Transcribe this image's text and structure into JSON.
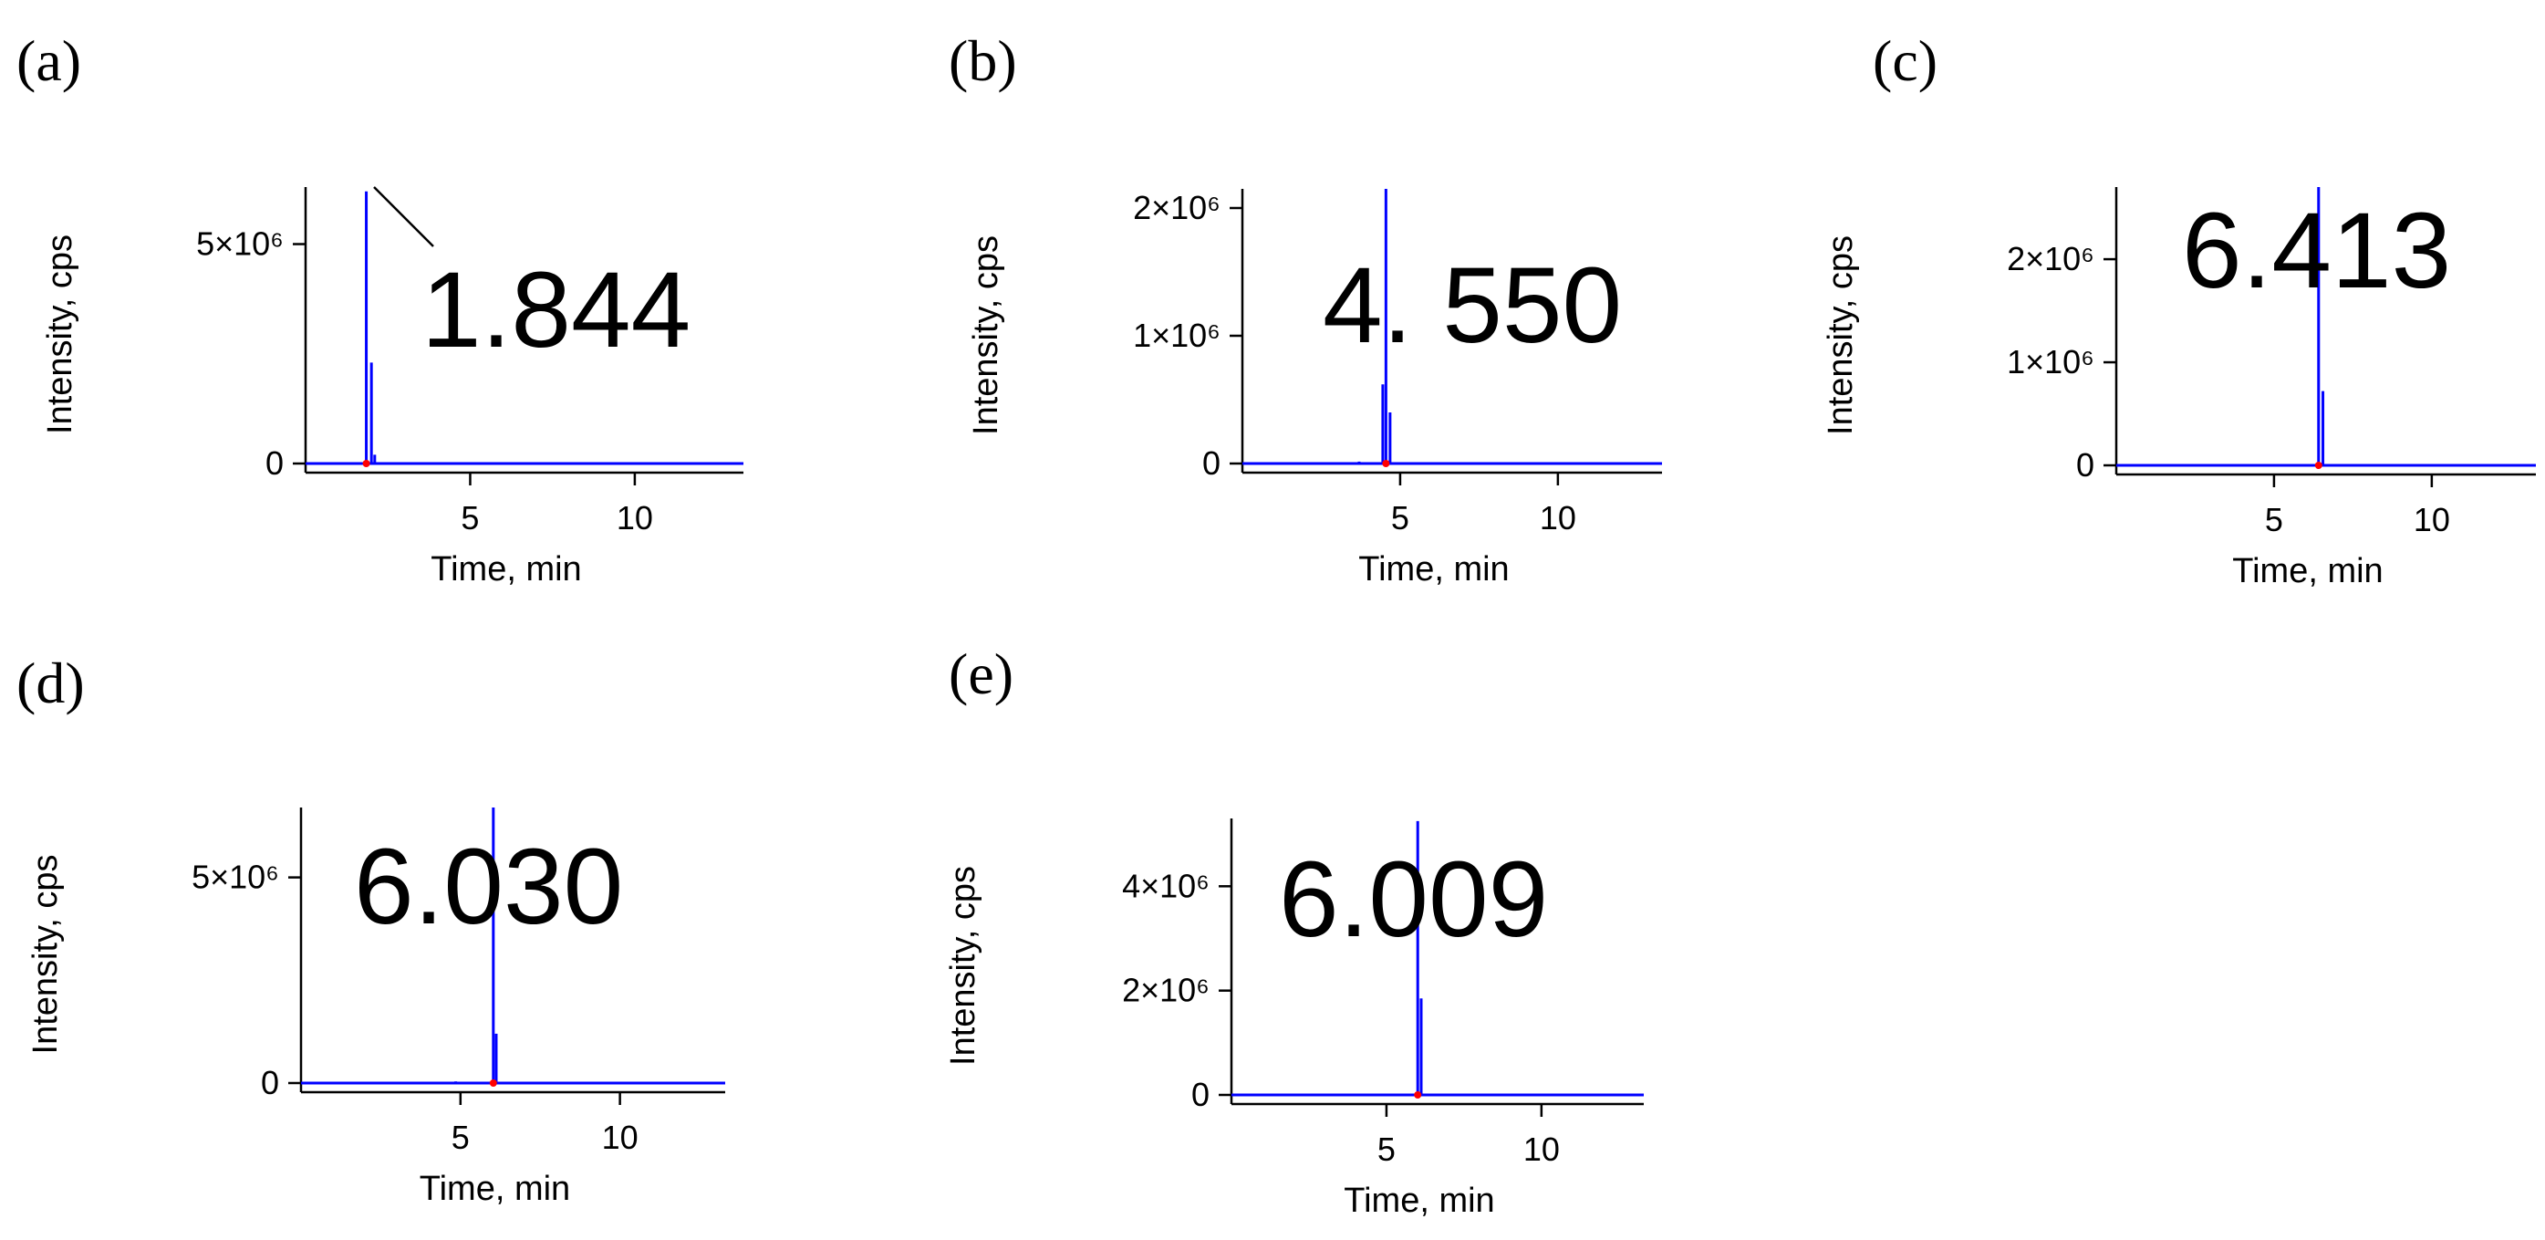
{
  "chart_data": [
    {
      "type": "line",
      "panel_label": "(a)",
      "xlabel": "Time, min",
      "ylabel": "Intensity, cps",
      "xlim": [
        0,
        13.3
      ],
      "ylim": [
        0,
        6300000
      ],
      "xticks": [
        {
          "v": 5,
          "label": "5"
        },
        {
          "v": 10,
          "label": "10"
        }
      ],
      "yticks": [
        {
          "v": 0,
          "label": "0"
        },
        {
          "v": 5000000,
          "label": "5×10⁶"
        }
      ],
      "retention_time_label": "1.844",
      "callout_line": true,
      "peaks": [
        {
          "x": 1.844,
          "y": 6200000
        },
        {
          "x": 2.0,
          "y": 2300000
        },
        {
          "x": 2.1,
          "y": 200000
        }
      ],
      "marker_x": 1.844
    },
    {
      "type": "line",
      "panel_label": "(b)",
      "xlabel": "Time, min",
      "ylabel": "Intensity, cps",
      "xlim": [
        0,
        13.3
      ],
      "ylim": [
        0,
        2150000
      ],
      "xticks": [
        {
          "v": 5,
          "label": "5"
        },
        {
          "v": 10,
          "label": "10"
        }
      ],
      "yticks": [
        {
          "v": 0,
          "label": "0"
        },
        {
          "v": 1000000,
          "label": "1×10⁶"
        },
        {
          "v": 2000000,
          "label": "2×10⁶"
        }
      ],
      "retention_time_label": "4. 550",
      "callout_line": false,
      "peaks": [
        {
          "x": 4.55,
          "y": 2150000
        },
        {
          "x": 4.45,
          "y": 620000
        },
        {
          "x": 4.68,
          "y": 400000
        },
        {
          "x": 3.7,
          "y": 15000
        }
      ],
      "marker_x": 4.55
    },
    {
      "type": "line",
      "panel_label": "(c)",
      "xlabel": "Time, min",
      "ylabel": "Intensity, cps",
      "xlim": [
        0,
        13.3
      ],
      "ylim": [
        0,
        2700000
      ],
      "xticks": [
        {
          "v": 5,
          "label": "5"
        },
        {
          "v": 10,
          "label": "10"
        }
      ],
      "yticks": [
        {
          "v": 0,
          "label": "0"
        },
        {
          "v": 1000000,
          "label": "1×10⁶"
        },
        {
          "v": 2000000,
          "label": "2×10⁶"
        }
      ],
      "retention_time_label": "6.413",
      "callout_line": false,
      "peaks": [
        {
          "x": 6.413,
          "y": 2700000
        },
        {
          "x": 6.55,
          "y": 720000
        }
      ],
      "marker_x": 6.413
    },
    {
      "type": "line",
      "panel_label": "(d)",
      "xlabel": "Time, min",
      "ylabel": "Intensity, cps",
      "xlim": [
        0,
        13.3
      ],
      "ylim": [
        0,
        6700000
      ],
      "xticks": [
        {
          "v": 5,
          "label": "5"
        },
        {
          "v": 10,
          "label": "10"
        }
      ],
      "yticks": [
        {
          "v": 0,
          "label": "0"
        },
        {
          "v": 5000000,
          "label": "5×10⁶"
        }
      ],
      "retention_time_label": "6.030",
      "callout_line": false,
      "peaks": [
        {
          "x": 6.03,
          "y": 6700000
        },
        {
          "x": 6.12,
          "y": 1200000
        },
        {
          "x": 4.85,
          "y": 40000
        }
      ],
      "marker_x": 6.03
    },
    {
      "type": "line",
      "panel_label": "(e)",
      "xlabel": "Time, min",
      "ylabel": "Intensity, cps",
      "xlim": [
        0,
        13.3
      ],
      "ylim": [
        0,
        5300000
      ],
      "xticks": [
        {
          "v": 5,
          "label": "5"
        },
        {
          "v": 10,
          "label": "10"
        }
      ],
      "yticks": [
        {
          "v": 0,
          "label": "0"
        },
        {
          "v": 2000000,
          "label": "2×10⁶"
        },
        {
          "v": 4000000,
          "label": "4×10⁶"
        }
      ],
      "retention_time_label": "6.009",
      "callout_line": false,
      "peaks": [
        {
          "x": 6.009,
          "y": 5250000
        },
        {
          "x": 6.12,
          "y": 1850000
        }
      ],
      "marker_x": 6.009
    }
  ]
}
